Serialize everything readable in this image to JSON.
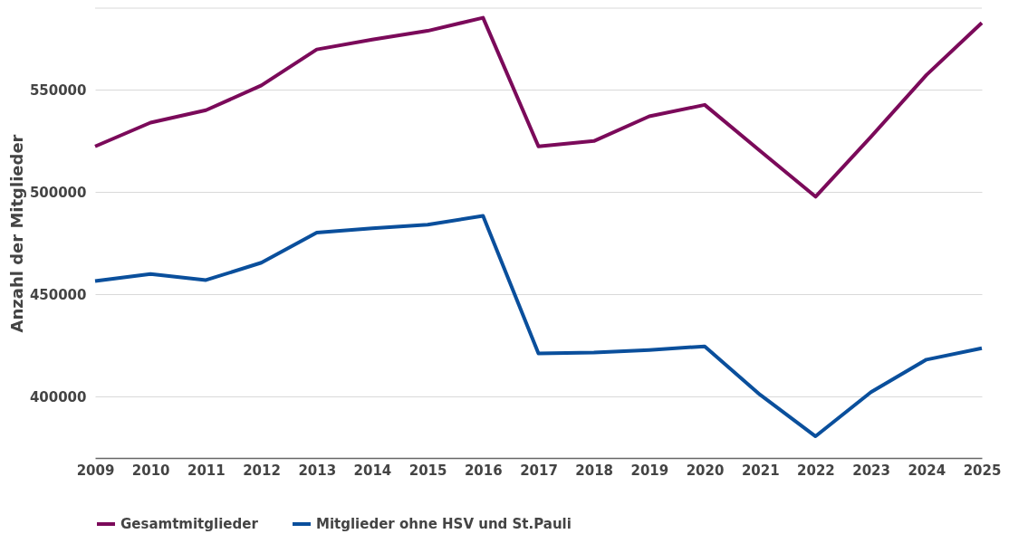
{
  "chart_data": {
    "type": "line",
    "ylabel": "Anzahl der Mitglieder",
    "categories": [
      "2009",
      "2010",
      "2011",
      "2012",
      "2013",
      "2014",
      "2015",
      "2016",
      "2017",
      "2018",
      "2019",
      "2020",
      "2021",
      "2022",
      "2023",
      "2024",
      "2025"
    ],
    "series": [
      {
        "name": "Gesamtmitglieder",
        "color": "#7b0a5a",
        "values": [
          522400,
          534000,
          540100,
          552200,
          569800,
          574600,
          578900,
          585300,
          522400,
          525000,
          537100,
          542700,
          520200,
          497800,
          527100,
          557300,
          582800
        ]
      },
      {
        "name": "Mitglieder ohne HSV und St.Pauli",
        "color": "#0a4f9c",
        "values": [
          456500,
          460000,
          457000,
          465500,
          480200,
          482300,
          484100,
          488400,
          421100,
          421600,
          422800,
          424600,
          400900,
          380600,
          402200,
          418100,
          423700
        ]
      }
    ],
    "ylim": [
      370000,
      590000
    ],
    "yticks": [
      400000,
      450000,
      500000,
      550000
    ],
    "grid": "y",
    "legend": "bottom",
    "marker": "none",
    "line_style": "solid"
  }
}
